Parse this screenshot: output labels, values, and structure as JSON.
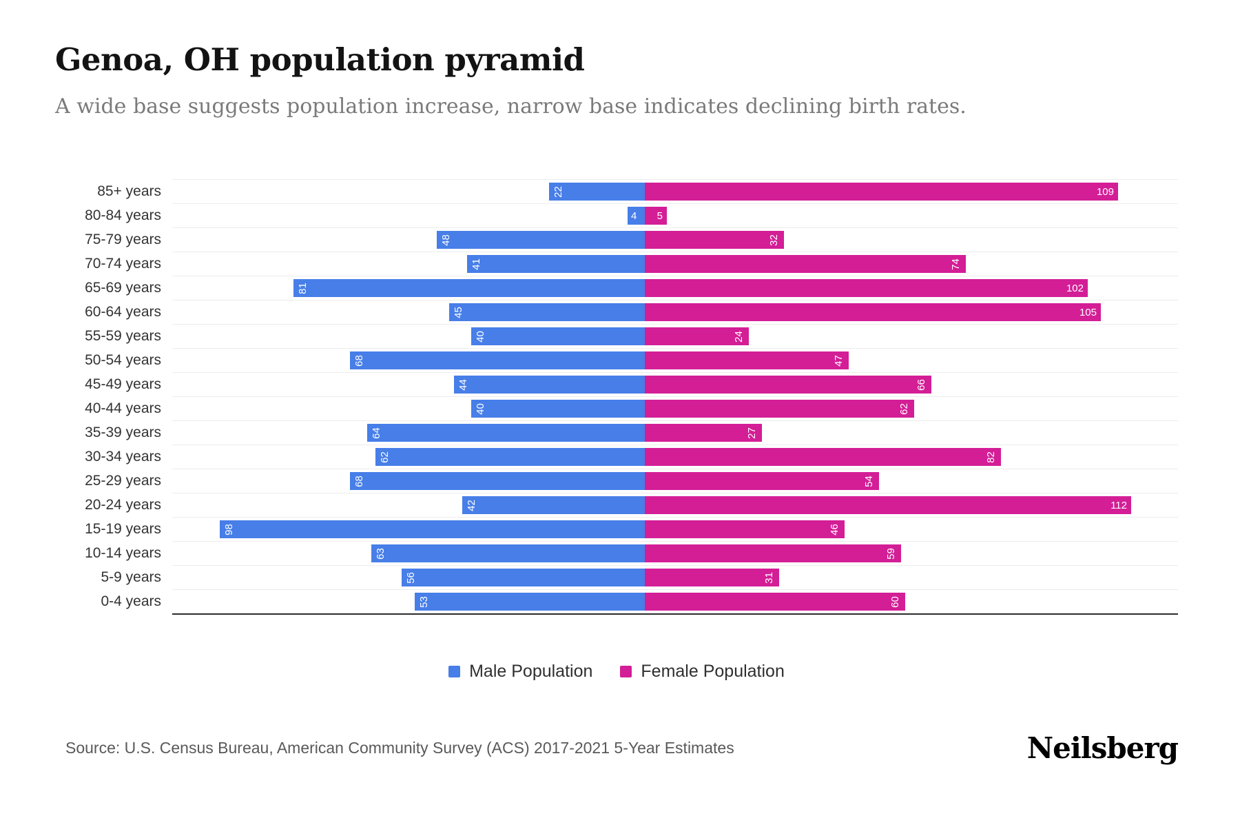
{
  "title": "Genoa, OH population pyramid",
  "subtitle": "A wide base suggests population increase, narrow base indicates declining birth rates.",
  "footer": {
    "source": "Source: U.S. Census Bureau, American Community Survey (ACS) 2017-2021 5-Year Estimates",
    "brand": "Neilsberg"
  },
  "chart_data": {
    "type": "bar",
    "orientation": "horizontal population pyramid",
    "title": "Genoa, OH population pyramid",
    "categories": [
      "85+ years",
      "80-84 years",
      "75-79 years",
      "70-74 years",
      "65-69 years",
      "60-64 years",
      "55-59 years",
      "50-54 years",
      "45-49 years",
      "40-44 years",
      "35-39 years",
      "30-34 years",
      "25-29 years",
      "20-24 years",
      "15-19 years",
      "10-14 years",
      "5-9 years",
      "0-4 years"
    ],
    "series": [
      {
        "name": "Male Population",
        "side": "left",
        "color": "#477ee8",
        "values": [
          22,
          4,
          48,
          41,
          81,
          45,
          40,
          68,
          44,
          40,
          64,
          62,
          68,
          42,
          98,
          63,
          56,
          53
        ]
      },
      {
        "name": "Female Population",
        "side": "right",
        "color": "#d31e96",
        "values": [
          109,
          5,
          32,
          74,
          102,
          105,
          24,
          47,
          66,
          62,
          27,
          82,
          54,
          112,
          46,
          59,
          31,
          60
        ]
      }
    ],
    "value_labels": "inside end, white, two-digit values rotated 90deg",
    "xlim_each_side": [
      0,
      120
    ],
    "grid": true,
    "legend_position": "bottom center"
  }
}
